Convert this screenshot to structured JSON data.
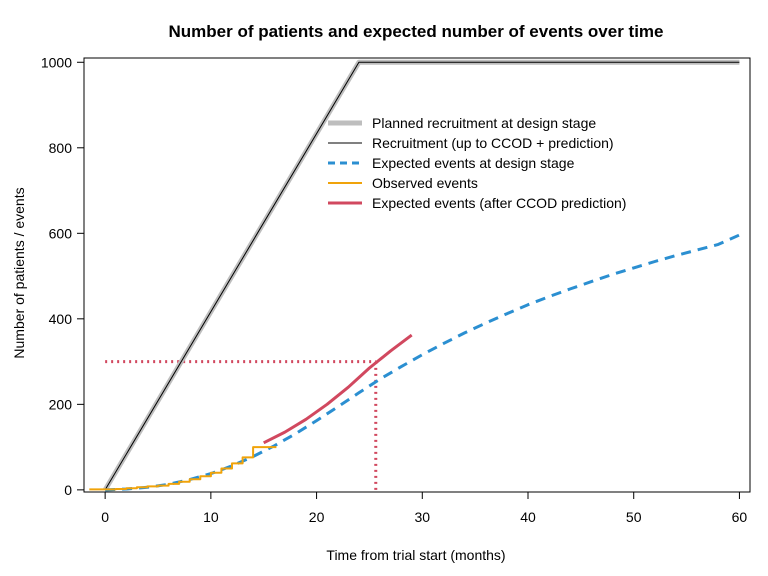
{
  "chart_data": {
    "type": "line",
    "title": "Number of patients and expected number of events over time",
    "xlabel": "Time from trial start (months)",
    "ylabel": "Number of patients / events",
    "xlim": [
      -2,
      61
    ],
    "ylim": [
      -5,
      1010
    ],
    "xticks": [
      0,
      10,
      20,
      30,
      40,
      50,
      60
    ],
    "yticks": [
      0,
      200,
      400,
      600,
      800,
      1000
    ],
    "grid": false,
    "legend_position": "top-right",
    "series": [
      {
        "name": "Planned recruitment at design stage",
        "color": "#bebebe",
        "style": "solid-thick",
        "x": [
          0,
          24,
          60
        ],
        "y": [
          0,
          1000,
          1000
        ]
      },
      {
        "name": "Recruitment (up to CCOD + prediction)",
        "color": "#000000",
        "style": "solid-thin",
        "x": [
          0,
          24,
          60
        ],
        "y": [
          0,
          1000,
          1000
        ]
      },
      {
        "name": "Expected events at design stage",
        "color": "#2b8fd1",
        "style": "dashed",
        "x": [
          0,
          2,
          4,
          6,
          8,
          10,
          12,
          14,
          16,
          18,
          20,
          22,
          24,
          26,
          28,
          30,
          32,
          34,
          36,
          38,
          40,
          42,
          44,
          46,
          48,
          50,
          52,
          54,
          56,
          58,
          60
        ],
        "y": [
          0,
          2,
          6,
          13,
          24,
          38,
          56,
          78,
          103,
          131,
          162,
          194,
          227,
          259,
          288,
          316,
          342,
          367,
          390,
          412,
          433,
          452,
          470,
          487,
          504,
          519,
          534,
          548,
          561,
          574,
          596
        ]
      },
      {
        "name": "Observed events",
        "color": "#f0a30a",
        "style": "step",
        "x": [
          -1.5,
          1,
          2,
          3,
          4,
          5,
          6,
          7,
          8,
          9,
          10,
          11,
          12,
          13,
          14,
          15,
          16,
          16.2
        ],
        "y": [
          1,
          2,
          4,
          6,
          8,
          10,
          14,
          19,
          25,
          32,
          40,
          50,
          62,
          76,
          100,
          100,
          100,
          100
        ]
      },
      {
        "name": "Expected events (after CCOD prediction)",
        "color": "#d1485f",
        "style": "solid-medium",
        "x": [
          15,
          17,
          19,
          21,
          23,
          25,
          27,
          29
        ],
        "y": [
          110,
          135,
          165,
          200,
          240,
          285,
          325,
          362
        ]
      }
    ],
    "reference_lines": {
      "color": "#d1485f",
      "horizontal": {
        "y": 300,
        "x_from": 0,
        "x_to": 25.6
      },
      "vertical": {
        "x": 25.6,
        "y_from": 0,
        "y_to": 300
      }
    }
  }
}
